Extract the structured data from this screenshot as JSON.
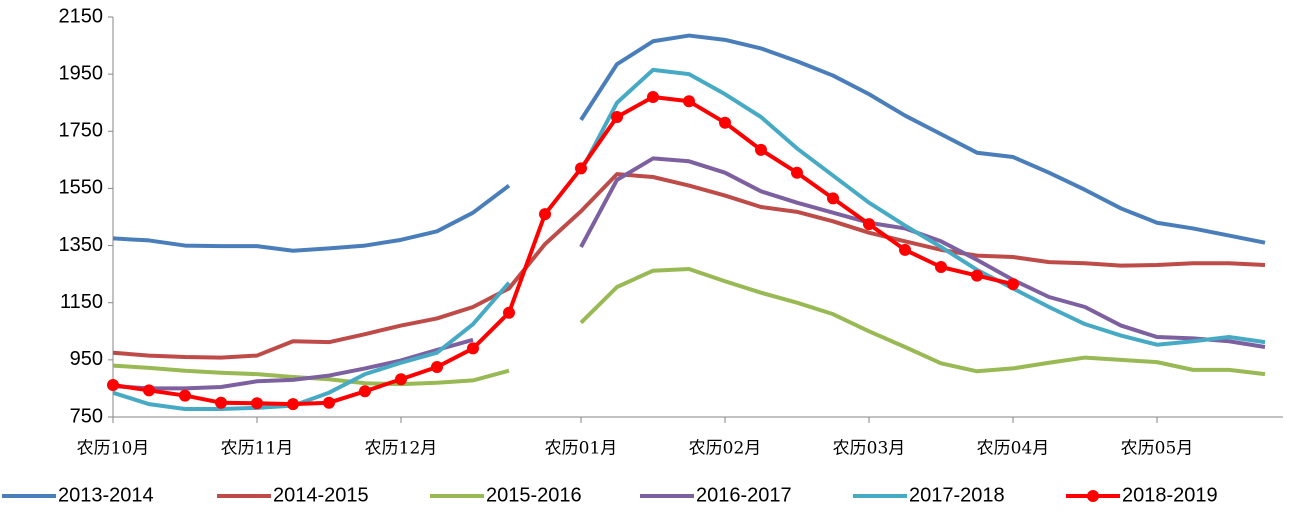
{
  "chart_data": {
    "type": "line",
    "categories": [
      "农历10月",
      null,
      null,
      null,
      "农历11月",
      null,
      null,
      null,
      "农历12月",
      null,
      null,
      null,
      null,
      "农历01月",
      null,
      null,
      null,
      "农历02月",
      null,
      null,
      null,
      "农历03月",
      null,
      null,
      null,
      "农历04月",
      null,
      null,
      null,
      "农历05月",
      null,
      null,
      null
    ],
    "ylim": [
      750,
      2150
    ],
    "yticks": [
      750,
      950,
      1150,
      1350,
      1550,
      1750,
      1950,
      2150
    ],
    "grid": false,
    "legend": "bottom",
    "series": [
      {
        "name": "2013-2014",
        "color": "#4a7ebb",
        "marker": false,
        "values": [
          1375,
          1368,
          1350,
          1348,
          1348,
          1332,
          1340,
          1350,
          1370,
          1400,
          1465,
          1560,
          null,
          1790,
          1985,
          2065,
          2085,
          2070,
          2040,
          1995,
          1945,
          1880,
          1805,
          1740,
          1675,
          1660,
          1605,
          1545,
          1480,
          1430,
          1410,
          1385,
          1360
        ]
      },
      {
        "name": "2014-2015",
        "color": "#be4b48",
        "marker": false,
        "values": [
          975,
          965,
          960,
          958,
          965,
          1015,
          1012,
          1040,
          1070,
          1095,
          1135,
          1200,
          1355,
          1470,
          1600,
          1590,
          1560,
          1525,
          1485,
          1468,
          1435,
          1395,
          1365,
          1335,
          1315,
          1310,
          1292,
          1288,
          1280,
          1282,
          1288,
          1288,
          1282
        ]
      },
      {
        "name": "2015-2016",
        "color": "#98b954",
        "marker": false,
        "values": [
          930,
          922,
          912,
          905,
          900,
          890,
          882,
          868,
          865,
          870,
          878,
          912,
          null,
          1080,
          1205,
          1262,
          1268,
          1225,
          1185,
          1150,
          1110,
          1050,
          995,
          938,
          910,
          920,
          940,
          958,
          950,
          942,
          915,
          915,
          900
        ]
      },
      {
        "name": "2016-2017",
        "color": "#7d60a0",
        "marker": false,
        "values": [
          858,
          850,
          850,
          855,
          875,
          880,
          895,
          920,
          948,
          985,
          1020,
          null,
          null,
          1345,
          1580,
          1655,
          1645,
          1605,
          1540,
          1500,
          1465,
          1430,
          1410,
          1365,
          1300,
          1230,
          1170,
          1135,
          1070,
          1030,
          1025,
          1015,
          995
        ]
      },
      {
        "name": "2017-2018",
        "color": "#46aac5",
        "marker": false,
        "values": [
          835,
          795,
          778,
          778,
          782,
          790,
          835,
          900,
          940,
          975,
          1075,
          1220,
          null,
          1610,
          1850,
          1965,
          1950,
          1880,
          1800,
          1690,
          1595,
          1500,
          1420,
          1345,
          1265,
          1200,
          1135,
          1075,
          1035,
          1003,
          1015,
          1030,
          1012
        ]
      },
      {
        "name": "2018-2019",
        "color": "#ff0000",
        "marker": true,
        "values": [
          862,
          843,
          825,
          800,
          798,
          795,
          800,
          840,
          882,
          925,
          990,
          1115,
          1460,
          1620,
          1800,
          1870,
          1855,
          1780,
          1685,
          1605,
          1515,
          1425,
          1335,
          1275,
          1245,
          1215,
          null,
          null,
          null,
          null,
          null,
          null,
          null
        ]
      }
    ]
  }
}
